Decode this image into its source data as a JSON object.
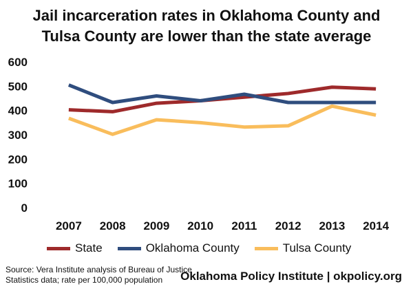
{
  "title": {
    "line1": "Jail incarceration rates in Oklahoma County and",
    "line2": "Tulsa County are lower than the state average"
  },
  "legend": [
    {
      "label": "State",
      "color": "#9e2a2b"
    },
    {
      "label": "Oklahoma County",
      "color": "#2f4d7e"
    },
    {
      "label": "Tulsa County",
      "color": "#f9bd5c"
    }
  ],
  "source": {
    "line1": "Source: Vera Institute analysis of Bureau of Justice",
    "line2": "Statistics data; rate per 100,000 population"
  },
  "credit": "Oklahoma Policy Institute | okpolicy.org",
  "chart_data": {
    "type": "line",
    "title": "Jail incarceration rates in Oklahoma County and Tulsa County are lower than the state average",
    "xlabel": "",
    "ylabel": "",
    "categories": [
      "2007",
      "2008",
      "2009",
      "2010",
      "2011",
      "2012",
      "2013",
      "2014"
    ],
    "ylim": [
      0,
      600
    ],
    "yticks": [
      0,
      100,
      200,
      300,
      400,
      500,
      600
    ],
    "grid": false,
    "legend_position": "bottom",
    "series": [
      {
        "name": "State",
        "color": "#9e2a2b",
        "values": [
          403,
          395,
          430,
          440,
          455,
          470,
          496,
          489
        ]
      },
      {
        "name": "Oklahoma County",
        "color": "#2f4d7e",
        "values": [
          505,
          433,
          460,
          440,
          467,
          433,
          433,
          433
        ]
      },
      {
        "name": "Tulsa County",
        "color": "#f9bd5c",
        "values": [
          368,
          302,
          362,
          350,
          332,
          337,
          418,
          381
        ]
      }
    ]
  }
}
